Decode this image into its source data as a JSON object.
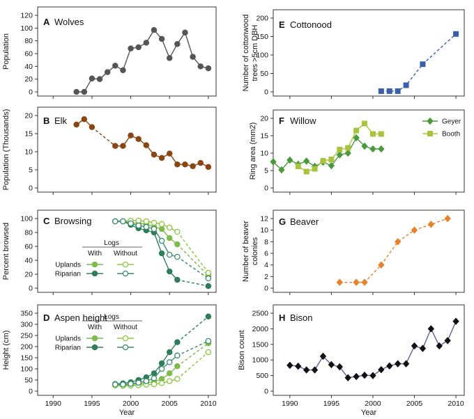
{
  "figure": {
    "x_axis_title_left": "Year",
    "x_axis_title_right": "Year"
  },
  "chart_data": [
    {
      "id": "A",
      "type": "line",
      "panel_letter": "A",
      "title": "Wolves",
      "xlabel": "",
      "ylabel": "Population",
      "xlim": [
        1988,
        2011
      ],
      "ylim": [
        0,
        120
      ],
      "yticks": [
        0,
        20,
        40,
        60,
        80,
        100,
        120
      ],
      "grid": false,
      "color": "#555555",
      "marker": "circle",
      "series": [
        {
          "name": "",
          "x": [
            1993,
            1994,
            1995,
            1996,
            1997,
            1998,
            1999,
            2000,
            2001,
            2002,
            2003,
            2004,
            2005,
            2006,
            2007,
            2008,
            2009,
            2010
          ],
          "y": [
            0,
            0,
            21,
            20,
            31,
            41,
            34,
            68,
            70,
            77,
            97,
            83,
            53,
            75,
            93,
            55,
            40,
            37
          ]
        }
      ]
    },
    {
      "id": "B",
      "type": "line",
      "panel_letter": "B",
      "title": "Elk",
      "xlabel": "",
      "ylabel": "Population (Thousands)",
      "xlim": [
        1988,
        2011
      ],
      "ylim": [
        0,
        20
      ],
      "yticks": [
        0,
        5,
        10,
        15,
        20
      ],
      "grid": false,
      "color": "#8B4513",
      "marker": "circle",
      "dashed_gap": [
        1995,
        1998
      ],
      "series": [
        {
          "name": "",
          "x": [
            1993,
            1994,
            1995,
            1998,
            1999,
            2000,
            2001,
            2002,
            2003,
            2004,
            2005,
            2006,
            2007,
            2008,
            2009,
            2010
          ],
          "y": [
            17.5,
            19,
            16.8,
            11.6,
            11.6,
            14.5,
            13.5,
            11.8,
            9.2,
            8.3,
            9.5,
            6.5,
            6.5,
            6,
            6.9,
            5.8
          ]
        }
      ]
    },
    {
      "id": "C",
      "type": "line",
      "panel_letter": "C",
      "title": "Browsing",
      "xlabel": "",
      "ylabel": "Percent browsed",
      "xlim": [
        1988,
        2011
      ],
      "ylim": [
        0,
        100
      ],
      "yticks": [
        0,
        20,
        40,
        60,
        80,
        100
      ],
      "grid": false,
      "legend": {
        "title": "Logs",
        "columns": [
          "With",
          "Without"
        ],
        "rows": [
          "Uplands",
          "Riparian"
        ],
        "placement": "left"
      },
      "series": [
        {
          "name": "Uplands With",
          "color": "#7dbb4a",
          "filled": true,
          "x": [
            1998,
            1999,
            2000,
            2001,
            2002,
            2003,
            2004,
            2005,
            2006,
            2010
          ],
          "y": [
            96,
            96,
            94,
            93,
            92,
            88,
            85,
            72,
            63,
            18
          ]
        },
        {
          "name": "Uplands Without",
          "color": "#8cc63f",
          "filled": false,
          "x": [
            1998,
            1999,
            2000,
            2001,
            2002,
            2003,
            2004,
            2005,
            2006,
            2010
          ],
          "y": [
            96,
            96,
            97,
            97,
            96,
            94,
            92,
            87,
            81,
            22
          ]
        },
        {
          "name": "Riparian With",
          "color": "#2e7d5b",
          "filled": true,
          "x": [
            1998,
            1999,
            2000,
            2001,
            2002,
            2003,
            2004,
            2005,
            2006,
            2010
          ],
          "y": [
            96,
            96,
            91,
            86,
            83,
            80,
            50,
            24,
            12,
            3
          ]
        },
        {
          "name": "Riparian Without",
          "color": "#3a8c6e",
          "filled": false,
          "x": [
            1998,
            1999,
            2000,
            2001,
            2002,
            2003,
            2004,
            2005,
            2006,
            2010
          ],
          "y": [
            96,
            96,
            93,
            90,
            88,
            85,
            68,
            48,
            45,
            14
          ]
        }
      ]
    },
    {
      "id": "D",
      "type": "line",
      "panel_letter": "D",
      "title": "Aspen height",
      "xlabel": "Year",
      "ylabel": "Height (cm)",
      "xlim": [
        1988,
        2011
      ],
      "ylim": [
        0,
        350
      ],
      "yticks": [
        0,
        50,
        100,
        150,
        200,
        250,
        300,
        350
      ],
      "xticks": [
        1990,
        1995,
        2000,
        2005,
        2010
      ],
      "grid": false,
      "legend": {
        "title": "Logs",
        "columns": [
          "With",
          "Without"
        ],
        "rows": [
          "Uplands",
          "Riparian"
        ],
        "placement": "left"
      },
      "series": [
        {
          "name": "Uplands With",
          "color": "#7dbb4a",
          "filled": true,
          "x": [
            1998,
            1999,
            2000,
            2001,
            2002,
            2003,
            2004,
            2005,
            2006,
            2010
          ],
          "y": [
            28,
            28,
            30,
            33,
            37,
            42,
            55,
            80,
            112,
            215
          ]
        },
        {
          "name": "Uplands Without",
          "color": "#8cc63f",
          "filled": false,
          "x": [
            1998,
            1999,
            2000,
            2001,
            2002,
            2003,
            2004,
            2005,
            2006,
            2010
          ],
          "y": [
            25,
            24,
            25,
            27,
            29,
            31,
            36,
            45,
            55,
            175
          ]
        },
        {
          "name": "Riparian With",
          "color": "#2e7d5b",
          "filled": true,
          "x": [
            1998,
            1999,
            2000,
            2001,
            2002,
            2003,
            2004,
            2005,
            2006,
            2010
          ],
          "y": [
            32,
            35,
            40,
            50,
            62,
            80,
            125,
            175,
            220,
            335
          ]
        },
        {
          "name": "Riparian Without",
          "color": "#3a8c6e",
          "filled": false,
          "x": [
            1998,
            1999,
            2000,
            2001,
            2002,
            2003,
            2004,
            2005,
            2006,
            2010
          ],
          "y": [
            30,
            30,
            33,
            38,
            45,
            58,
            100,
            130,
            160,
            225
          ]
        }
      ]
    },
    {
      "id": "E",
      "type": "line",
      "panel_letter": "E",
      "title": "Cottonood",
      "xlabel": "",
      "ylabel": "Number of cottonwood trees >5cm DBH",
      "xlim": [
        1988,
        2011
      ],
      "ylim": [
        0,
        200
      ],
      "yticks": [
        0,
        50,
        100,
        150,
        200
      ],
      "grid": false,
      "color": "#3a5fad",
      "marker": "square",
      "dashed": true,
      "series": [
        {
          "name": "",
          "x": [
            2001,
            2002,
            2003,
            2004,
            2006,
            2010
          ],
          "y": [
            2,
            2,
            2,
            18,
            75,
            157
          ]
        }
      ]
    },
    {
      "id": "F",
      "type": "line",
      "panel_letter": "F",
      "title": "Willow",
      "xlabel": "",
      "ylabel": "Ring area (mm2)",
      "xlim": [
        1988,
        2011
      ],
      "ylim": [
        0,
        20
      ],
      "yticks": [
        0,
        5,
        10,
        15,
        20
      ],
      "grid": false,
      "legend": {
        "placement": "top-right"
      },
      "series": [
        {
          "name": "Geyer",
          "color": "#4a9a3c",
          "marker": "diamond",
          "x": [
            1988,
            1989,
            1990,
            1991,
            1992,
            1993,
            1994,
            1995,
            1996,
            1997,
            1998,
            1999,
            2000,
            2001
          ],
          "y": [
            7.5,
            5.2,
            8,
            6.8,
            7.7,
            6.2,
            7.4,
            6.4,
            9.5,
            10,
            14.4,
            12,
            11.2,
            11.2
          ]
        },
        {
          "name": "Booth",
          "color": "#a8c43c",
          "marker": "square",
          "x": [
            1991,
            1992,
            1993,
            1994,
            1995,
            1996,
            1997,
            1998,
            1999,
            2000,
            2001
          ],
          "y": [
            6.2,
            4.7,
            5.5,
            7.8,
            8.2,
            11,
            11.5,
            16.5,
            18.5,
            15.5,
            15.5
          ]
        }
      ]
    },
    {
      "id": "G",
      "type": "line",
      "panel_letter": "G",
      "title": "Beaver",
      "xlabel": "",
      "ylabel": "Number of beaver colonies",
      "xlim": [
        1988,
        2011
      ],
      "ylim": [
        0,
        12
      ],
      "yticks": [
        0,
        2,
        4,
        6,
        8,
        10,
        12
      ],
      "grid": false,
      "color": "#e8822b",
      "marker": "diamond",
      "dashed": true,
      "series": [
        {
          "name": "",
          "x": [
            1996,
            1998,
            1999,
            2001,
            2003,
            2005,
            2007,
            2009
          ],
          "y": [
            1,
            1,
            1,
            4,
            8,
            10,
            11,
            12
          ]
        }
      ]
    },
    {
      "id": "H",
      "type": "line",
      "panel_letter": "H",
      "title": "Bison",
      "xlabel": "Year",
      "ylabel": "Bison count",
      "xlim": [
        1988,
        2011
      ],
      "ylim": [
        0,
        2500
      ],
      "yticks": [
        0,
        500,
        1000,
        1500,
        2000,
        2500
      ],
      "xticks": [
        1990,
        1995,
        2000,
        2005,
        2010
      ],
      "grid": false,
      "color": "#111111",
      "line_color": "#5b5ea6",
      "marker": "diamond",
      "series": [
        {
          "name": "",
          "x": [
            1990,
            1991,
            1992,
            1993,
            1994,
            1995,
            1996,
            1997,
            1998,
            1999,
            2000,
            2001,
            2002,
            2003,
            2004,
            2005,
            2006,
            2007,
            2008,
            2009,
            2010
          ],
          "y": [
            830,
            800,
            680,
            680,
            1120,
            850,
            780,
            430,
            470,
            510,
            500,
            690,
            810,
            880,
            880,
            1450,
            1370,
            2000,
            1450,
            1620,
            2240
          ]
        }
      ]
    }
  ]
}
